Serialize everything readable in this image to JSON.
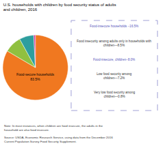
{
  "chart_data": {
    "type": "pie",
    "title": "U.S. households with children by food security status of adults\nand children, 2016",
    "categories": [
      "Food-secure households\n83.5%",
      null,
      null,
      null
    ],
    "values": [
      83.5,
      8.5,
      7.2,
      0.8
    ],
    "colors": [
      "#F07820",
      "#90C040",
      "#2E9E9E",
      "#CC3399"
    ],
    "legend": false,
    "annotations": [
      {
        "text": "Food-insecure households −16.5%",
        "color": "#5555BB"
      },
      {
        "text": "Food insecurity among adults only in households with\nchildren—8.5%",
        "color": "#333333"
      },
      {
        "text": "Food-insecure, children−8.0%",
        "color": "#5555BB"
      },
      {
        "text": "Low food security among\nchildren—7.2%",
        "color": "#333333"
      },
      {
        "text": "Very low food security among\nchildren—0.8%",
        "color": "#333333"
      },
      {
        "text": "Note: In most instances, when children are food insecure, the adults in the\nhousehold are also food insecure.",
        "color": "#333333"
      },
      {
        "text": "Source: USDA, Economic Research Service, using data from the December 2016\nCurrent Population Survey Food Security Supplement.",
        "color": "#333333"
      }
    ]
  }
}
